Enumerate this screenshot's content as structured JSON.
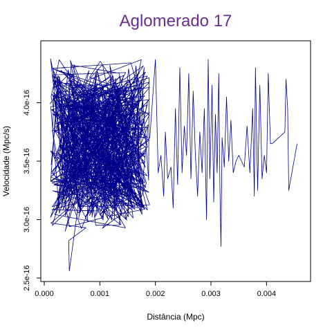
{
  "chart_data": {
    "type": "line",
    "title": "Aglomerado 17",
    "xlabel": "Distância (Mpc)",
    "ylabel": "Velocidade (Mpc/s)",
    "xlim": [
      0.0,
      0.00473
    ],
    "ylim": [
      2.5e-16,
      4.5e-16
    ],
    "x_ticks": [
      {
        "value": 0.0,
        "label": "0.000"
      },
      {
        "value": 0.001,
        "label": "0.001"
      },
      {
        "value": 0.002,
        "label": "0.002"
      },
      {
        "value": 0.003,
        "label": "0.003"
      },
      {
        "value": 0.004,
        "label": "0.004"
      }
    ],
    "y_ticks": [
      {
        "value": 2.5e-16,
        "label": "2.5e-16"
      },
      {
        "value": 3e-16,
        "label": "3.0e-16"
      },
      {
        "value": 3.5e-16,
        "label": "3.5e-16"
      },
      {
        "value": 4e-16,
        "label": "4.0e-16"
      }
    ],
    "colors": {
      "line": "#00008B",
      "title": "#6A2C91",
      "frame": "#000000"
    },
    "grid": false,
    "legend": "none",
    "dense_region": {
      "x_range": [
        0.0001,
        0.0019
      ],
      "y_range": [
        2.9e-16,
        4.38e-16
      ],
      "sample_count": 700,
      "seed": 17
    },
    "series": [
      {
        "points": [
          [
            0.0019,
            3.7e-16
          ],
          [
            0.002,
            4.37e-16
          ],
          [
            0.00205,
            3.4e-16
          ],
          [
            0.0021,
            3.55e-16
          ],
          [
            0.00215,
            3.2e-16
          ],
          [
            0.00218,
            3.75e-16
          ],
          [
            0.00222,
            3.35e-16
          ],
          [
            0.00228,
            3.45e-16
          ],
          [
            0.00232,
            3.1e-16
          ],
          [
            0.00236,
            3.95e-16
          ],
          [
            0.0024,
            3.3e-16
          ],
          [
            0.00244,
            4.3e-16
          ],
          [
            0.00248,
            3.4e-16
          ],
          [
            0.00252,
            3.8e-16
          ],
          [
            0.00256,
            3.55e-16
          ],
          [
            0.0026,
            4.25e-16
          ],
          [
            0.00264,
            3.35e-16
          ],
          [
            0.00268,
            4.1e-16
          ],
          [
            0.00272,
            3.55e-16
          ],
          [
            0.00276,
            3.2e-16
          ],
          [
            0.0028,
            3.75e-16
          ],
          [
            0.00284,
            3.4e-16
          ],
          [
            0.00288,
            3.95e-16
          ],
          [
            0.00292,
            3e-16
          ],
          [
            0.00295,
            4.37e-16
          ],
          [
            0.00298,
            3.35e-16
          ],
          [
            0.00302,
            4.15e-16
          ],
          [
            0.00305,
            3.15e-16
          ],
          [
            0.00308,
            3.9e-16
          ],
          [
            0.00311,
            3.4e-16
          ],
          [
            0.00314,
            4.25e-16
          ],
          [
            0.00316,
            3.3e-16
          ],
          [
            0.00318,
            2.77e-16
          ],
          [
            0.0032,
            3.7e-16
          ],
          [
            0.00324,
            3.45e-16
          ],
          [
            0.00328,
            4.05e-16
          ],
          [
            0.00332,
            3.5e-16
          ],
          [
            0.00336,
            3.85e-16
          ],
          [
            0.0034,
            3.4e-16
          ],
          [
            0.00345,
            3.5e-16
          ],
          [
            0.0035,
            3.55e-16
          ],
          [
            0.00355,
            3.5e-16
          ],
          [
            0.0036,
            3.45e-16
          ],
          [
            0.00365,
            3.8e-16
          ],
          [
            0.0037,
            3.4e-16
          ],
          [
            0.00375,
            3.95e-16
          ],
          [
            0.00378,
            3.2e-16
          ],
          [
            0.0038,
            4.3e-16
          ],
          [
            0.00384,
            3.25e-16
          ],
          [
            0.00388,
            4.15e-16
          ],
          [
            0.00392,
            3.35e-16
          ],
          [
            0.00396,
            3.55e-16
          ],
          [
            0.004,
            3.4e-16
          ],
          [
            0.00403,
            4.25e-16
          ],
          [
            0.00407,
            3.65e-16
          ],
          [
            0.0041,
            3.65e-16
          ],
          [
            0.00433,
            3.75e-16
          ],
          [
            0.00435,
            4.2e-16
          ],
          [
            0.00438,
            3.95e-16
          ],
          [
            0.0044,
            3.25e-16
          ],
          [
            0.00455,
            3.65e-16
          ]
        ]
      }
    ]
  }
}
